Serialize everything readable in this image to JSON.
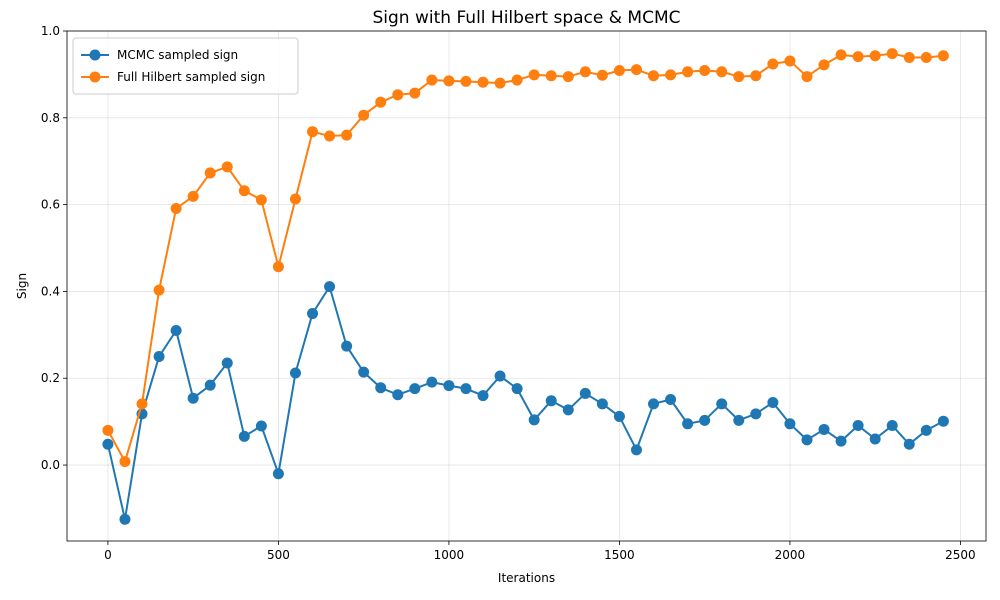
{
  "chart_data": {
    "type": "line",
    "title": "Sign with Full Hilbert space & MCMC",
    "xlabel": "Iterations",
    "ylabel": "Sign",
    "xlim": [
      -120,
      2575
    ],
    "ylim": [
      -0.175,
      1.0
    ],
    "xticks": [
      0,
      500,
      1000,
      1500,
      2000,
      2500
    ],
    "yticks": [
      0.0,
      0.2,
      0.4,
      0.6,
      0.8,
      1.0
    ],
    "xtick_labels": [
      "0",
      "500",
      "1000",
      "1500",
      "2000",
      "2500"
    ],
    "ytick_labels": [
      "0.0",
      "0.2",
      "0.4",
      "0.6",
      "0.8",
      "1.0"
    ],
    "grid": true,
    "legend_position": "upper-left",
    "x": [
      0,
      50,
      100,
      150,
      200,
      250,
      300,
      350,
      400,
      450,
      500,
      550,
      600,
      650,
      700,
      750,
      800,
      850,
      900,
      950,
      1000,
      1050,
      1100,
      1150,
      1200,
      1250,
      1300,
      1350,
      1400,
      1450,
      1500,
      1550,
      1600,
      1650,
      1700,
      1750,
      1800,
      1850,
      1900,
      1950,
      2000,
      2050,
      2100,
      2150,
      2200,
      2250,
      2300,
      2350,
      2400,
      2450
    ],
    "series": [
      {
        "name": "MCMC sampled sign",
        "color": "#1f77b4",
        "values": [
          0.048,
          -0.125,
          0.118,
          0.25,
          0.31,
          0.154,
          0.184,
          0.235,
          0.066,
          0.09,
          -0.02,
          0.212,
          0.349,
          0.411,
          0.274,
          0.214,
          0.178,
          0.162,
          0.176,
          0.191,
          0.183,
          0.176,
          0.16,
          0.205,
          0.176,
          0.104,
          0.148,
          0.127,
          0.165,
          0.141,
          0.112,
          0.035,
          0.141,
          0.151,
          0.095,
          0.103,
          0.141,
          0.103,
          0.118,
          0.144,
          0.095,
          0.058,
          0.082,
          0.055,
          0.091,
          0.06,
          0.091,
          0.048,
          0.08,
          0.101
        ]
      },
      {
        "name": "Full Hilbert sampled sign",
        "color": "#ff7f0e",
        "values": [
          0.08,
          0.008,
          0.141,
          0.403,
          0.591,
          0.619,
          0.673,
          0.687,
          0.632,
          0.611,
          0.457,
          0.613,
          0.768,
          0.758,
          0.76,
          0.806,
          0.836,
          0.853,
          0.857,
          0.887,
          0.885,
          0.884,
          0.882,
          0.88,
          0.887,
          0.899,
          0.897,
          0.895,
          0.906,
          0.898,
          0.909,
          0.911,
          0.897,
          0.899,
          0.906,
          0.909,
          0.906,
          0.895,
          0.897,
          0.924,
          0.931,
          0.895,
          0.922,
          0.945,
          0.941,
          0.943,
          0.948,
          0.939,
          0.939,
          0.943
        ]
      }
    ]
  }
}
